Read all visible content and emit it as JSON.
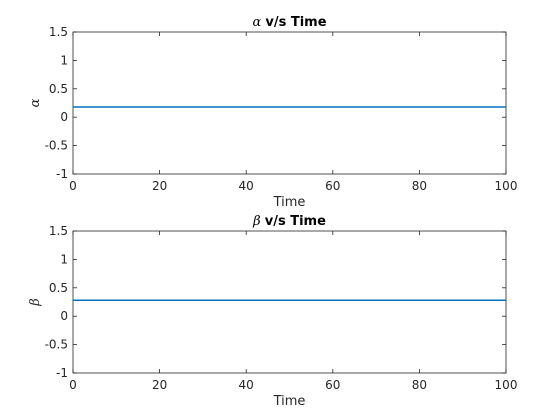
{
  "figure": {
    "background": "#ffffff"
  },
  "chart_data": [
    {
      "type": "line",
      "title_symbol": "α",
      "title": "v/s Time",
      "xlabel": "Time",
      "ylabel": "α",
      "xlim": [
        0,
        100
      ],
      "ylim": [
        -1,
        1.5
      ],
      "xticks": [
        0,
        20,
        40,
        60,
        80,
        100
      ],
      "yticks": [
        -1,
        -0.5,
        0,
        0.5,
        1,
        1.5
      ],
      "grid": false,
      "series": [
        {
          "name": "alpha",
          "color": "#0072bd",
          "x": [
            0,
            100
          ],
          "y": [
            0.18,
            0.18
          ]
        }
      ]
    },
    {
      "type": "line",
      "title_symbol": "β",
      "title": "v/s Time",
      "xlabel": "Time",
      "ylabel": "β",
      "xlim": [
        0,
        100
      ],
      "ylim": [
        -1,
        1.5
      ],
      "xticks": [
        0,
        20,
        40,
        60,
        80,
        100
      ],
      "yticks": [
        -1,
        -0.5,
        0,
        0.5,
        1,
        1.5
      ],
      "grid": false,
      "series": [
        {
          "name": "beta",
          "color": "#0072bd",
          "x": [
            0,
            100
          ],
          "y": [
            0.28,
            0.28
          ]
        }
      ]
    }
  ]
}
